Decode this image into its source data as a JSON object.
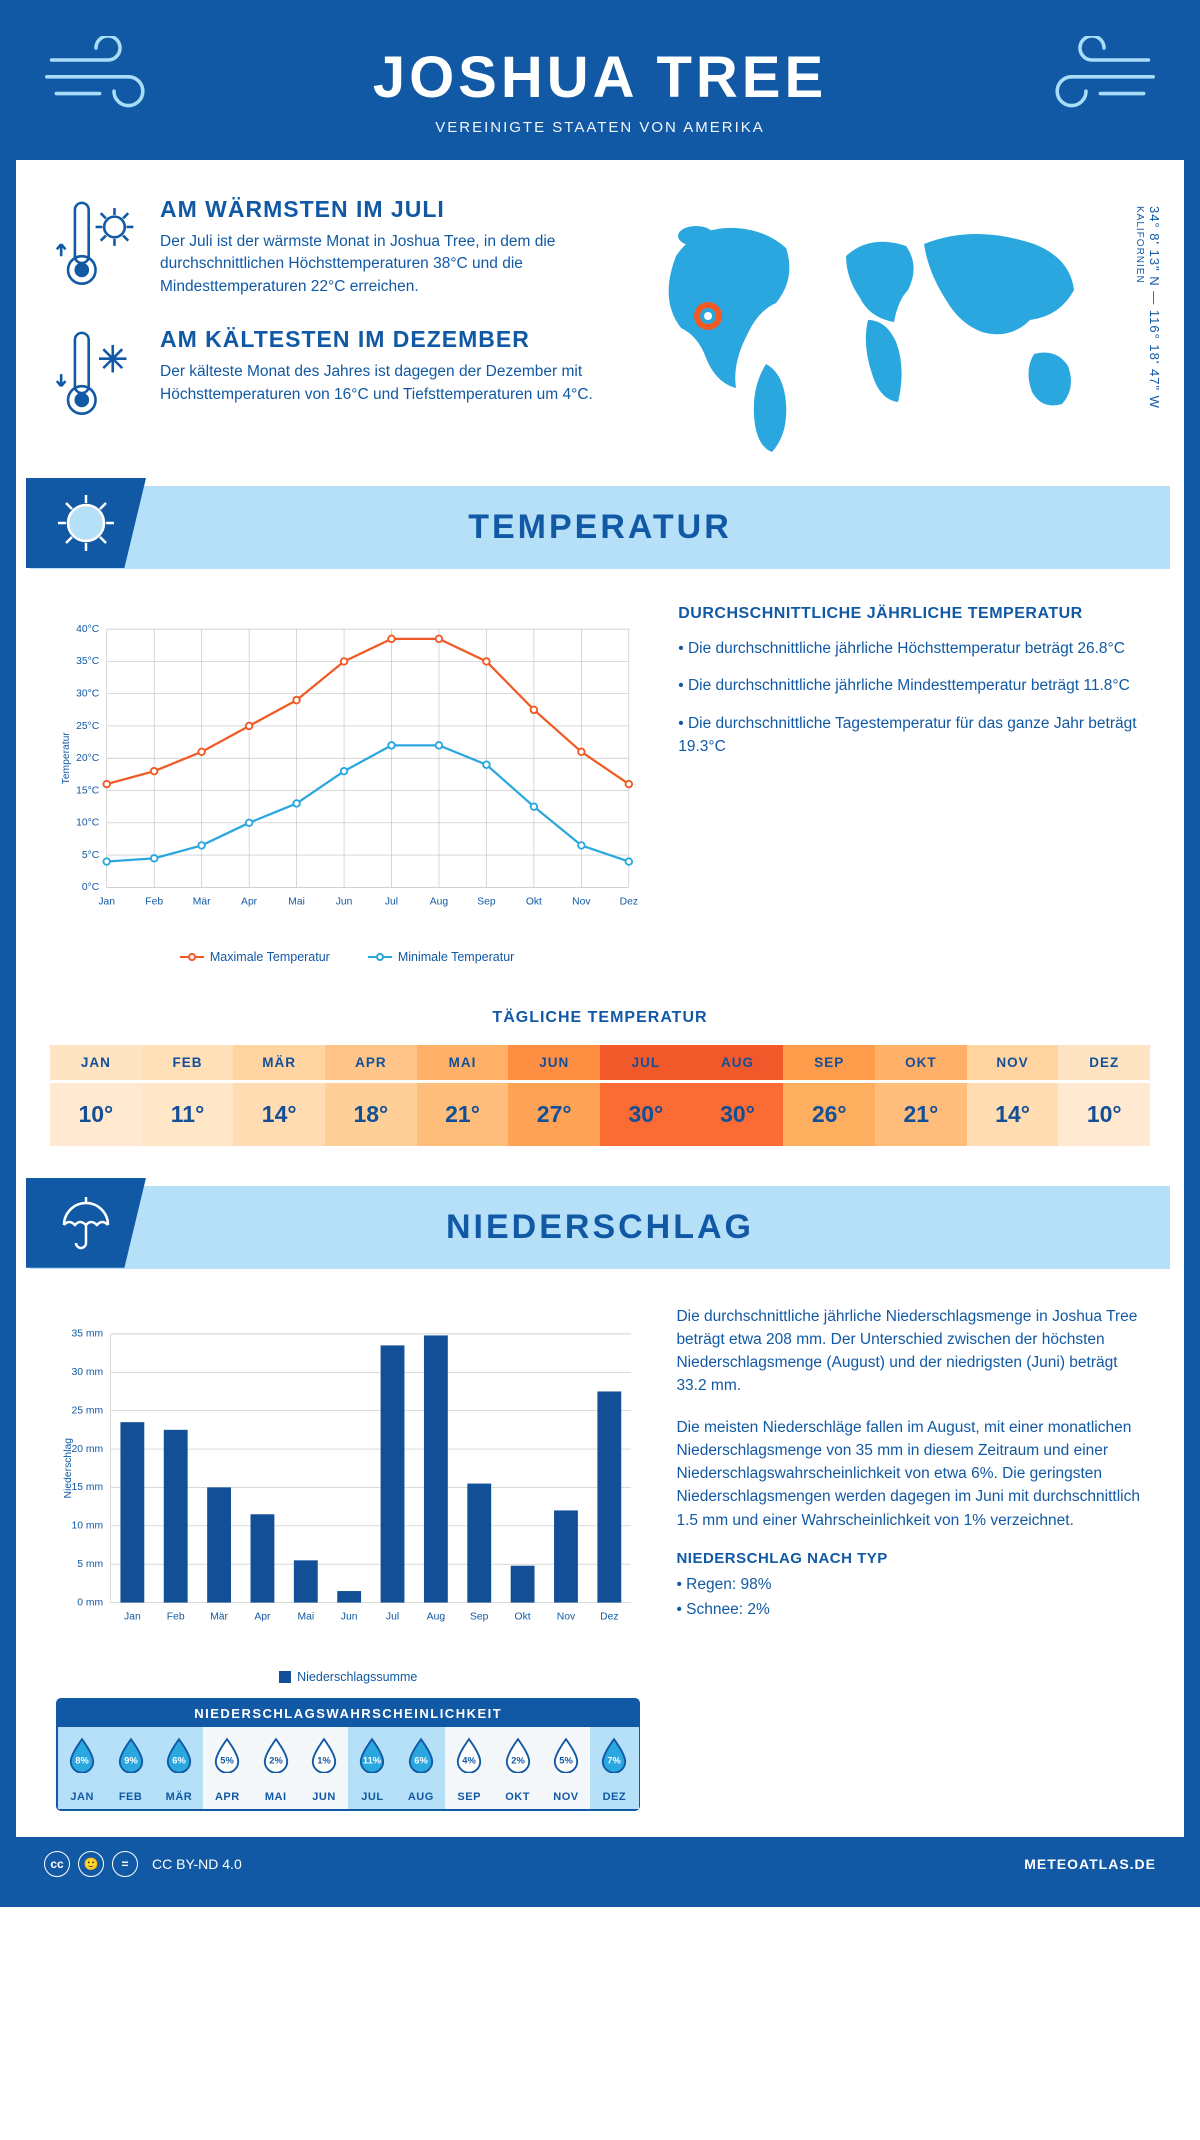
{
  "header": {
    "title": "JOSHUA TREE",
    "subtitle": "VEREINIGTE STAATEN VON AMERIKA"
  },
  "coords": {
    "main": "34° 8' 13\" N — 116° 18' 47\" W",
    "region": "KALIFORNIEN"
  },
  "facts": {
    "warm": {
      "title": "AM WÄRMSTEN IM JULI",
      "text": "Der Juli ist der wärmste Monat in Joshua Tree, in dem die durchschnittlichen Höchsttemperaturen 38°C und die Mindesttemperaturen 22°C erreichen."
    },
    "cold": {
      "title": "AM KÄLTESTEN IM DEZEMBER",
      "text": "Der kälteste Monat des Jahres ist dagegen der Dezember mit Höchsttemperaturen von 16°C und Tiefsttemperaturen um 4°C."
    }
  },
  "sections": {
    "temp_title": "TEMPERATUR",
    "precip_title": "NIEDERSCHLAG"
  },
  "months": [
    "Jan",
    "Feb",
    "Mär",
    "Apr",
    "Mai",
    "Jun",
    "Jul",
    "Aug",
    "Sep",
    "Okt",
    "Nov",
    "Dez"
  ],
  "months_upper": [
    "JAN",
    "FEB",
    "MÄR",
    "APR",
    "MAI",
    "JUN",
    "JUL",
    "AUG",
    "SEP",
    "OKT",
    "NOV",
    "DEZ"
  ],
  "temp_chart": {
    "ylabel": "Temperatur",
    "ymin": 0,
    "ymax": 40,
    "ystep": 5,
    "max_series": {
      "label": "Maximale Temperatur",
      "color": "#f15a24",
      "values": [
        16,
        18,
        21,
        25,
        29,
        35,
        38.5,
        38.5,
        35,
        27.5,
        21,
        16
      ]
    },
    "min_series": {
      "label": "Minimale Temperatur",
      "color": "#2aa7df",
      "values": [
        4,
        4.5,
        6.5,
        10,
        13,
        18,
        22,
        22,
        19,
        12.5,
        6.5,
        4
      ]
    },
    "grid_color": "#c3c3c3",
    "bg": "#ffffff"
  },
  "temp_text": {
    "title": "DURCHSCHNITTLICHE JÄHRLICHE TEMPERATUR",
    "bullets": [
      "• Die durchschnittliche jährliche Höchsttemperatur beträgt 26.8°C",
      "• Die durchschnittliche jährliche Mindesttemperatur beträgt 11.8°C",
      "• Die durchschnittliche Tagestemperatur für das ganze Jahr beträgt 19.3°C"
    ]
  },
  "daily": {
    "title": "TÄGLICHE TEMPERATUR",
    "values": [
      "10°",
      "11°",
      "14°",
      "18°",
      "21°",
      "27°",
      "30°",
      "30°",
      "26°",
      "21°",
      "14°",
      "10°"
    ],
    "head_bg": [
      "#ffe4c4",
      "#ffe0b9",
      "#ffd4a0",
      "#ffc488",
      "#ffb068",
      "#fe8f42",
      "#f1592a",
      "#f1592a",
      "#fe9c4c",
      "#ffb068",
      "#ffd4a0",
      "#ffe4c4"
    ],
    "val_bg": [
      "#ffe9d0",
      "#ffe6c7",
      "#ffdcb1",
      "#ffcf98",
      "#ffbd7b",
      "#fea356",
      "#fb6b34",
      "#fb6b34",
      "#feae5f",
      "#ffbd7b",
      "#ffdcb1",
      "#ffe9d0"
    ],
    "text_color": "#134f96"
  },
  "precip_chart": {
    "ylabel": "Niederschlag",
    "ymin": 0,
    "ymax": 35,
    "ystep": 5,
    "color": "#134f96",
    "legend": "Niederschlagssumme",
    "values": [
      23.5,
      22.5,
      15,
      11.5,
      5.5,
      1.5,
      33.5,
      34.8,
      15.5,
      4.8,
      12,
      27.5
    ]
  },
  "precip_text": {
    "p1": "Die durchschnittliche jährliche Niederschlagsmenge in Joshua Tree beträgt etwa 208 mm. Der Unterschied zwischen der höchsten Niederschlagsmenge (August) und der niedrigsten (Juni) beträgt 33.2 mm.",
    "p2": "Die meisten Niederschläge fallen im August, mit einer monatlichen Niederschlagsmenge von 35 mm in diesem Zeitraum und einer Niederschlagswahrscheinlichkeit von etwa 6%. Die geringsten Niederschlagsmengen werden dagegen im Juni mit durchschnittlich 1.5 mm und einer Wahrscheinlichkeit von 1% verzeichnet.",
    "type_title": "NIEDERSCHLAG NACH TYP",
    "type_lines": [
      "• Regen: 98%",
      "• Schnee: 2%"
    ]
  },
  "prob": {
    "title": "NIEDERSCHLAGSWAHRSCHEINLICHKEIT",
    "values": [
      "8%",
      "9%",
      "6%",
      "5%",
      "2%",
      "1%",
      "11%",
      "6%",
      "4%",
      "2%",
      "5%",
      "7%"
    ],
    "highlight": [
      true,
      true,
      true,
      false,
      false,
      false,
      true,
      true,
      false,
      false,
      false,
      true
    ],
    "fill_color": "#2aa7df",
    "outline_color": "#1159a4",
    "bg_hi": "#b6e0f8",
    "bg_lo": "#f4f7fa"
  },
  "footer": {
    "license": "CC BY-ND 4.0",
    "brand": "METEOATLAS.DE"
  }
}
